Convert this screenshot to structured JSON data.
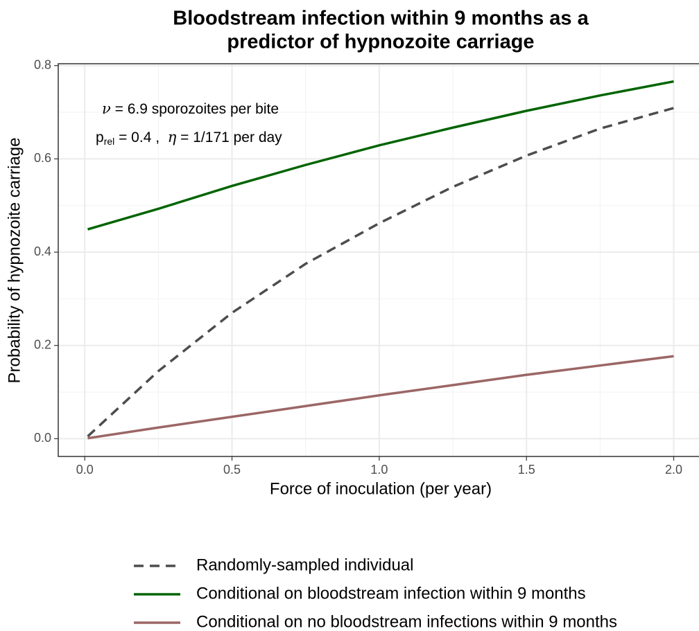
{
  "chart_data": {
    "type": "line",
    "title": [
      "Bloodstream infection within 9 months as a",
      "predictor of hypnozoite carriage"
    ],
    "annotations": [
      [
        "ν",
        " = 6.9 sporozoites per bite"
      ],
      [
        "p",
        "rel",
        " = 0.4 ,  ",
        "η",
        " = 1/171 per day"
      ]
    ],
    "xlabel": "Force of inoculation (per year)",
    "ylabel": "Probability of hypnozoite carriage",
    "x": [
      0.01,
      0.25,
      0.5,
      0.75,
      1.0,
      1.25,
      1.5,
      1.75,
      2.0
    ],
    "series": [
      {
        "name": "Randomly-sampled individual",
        "color": "#4d4d4d",
        "linestyle": "dashed",
        "values": [
          0.005,
          0.145,
          0.27,
          0.375,
          0.462,
          0.54,
          0.607,
          0.665,
          0.709
        ]
      },
      {
        "name": "Conditional on bloodstream infection within 9 months",
        "color": "#006400",
        "linestyle": "solid",
        "values": [
          0.449,
          0.493,
          0.542,
          0.587,
          0.629,
          0.667,
          0.703,
          0.736,
          0.766
        ]
      },
      {
        "name": "Conditional on no bloodstream infections within 9 months",
        "color": "#9c6666",
        "linestyle": "solid",
        "values": [
          0.001,
          0.024,
          0.047,
          0.07,
          0.093,
          0.115,
          0.137,
          0.157,
          0.177
        ]
      }
    ],
    "xlim": [
      -0.09,
      2.1
    ],
    "ylim": [
      -0.038,
      0.804
    ],
    "xticks": [
      {
        "value": 0,
        "label": "0.0"
      },
      0.5,
      {
        "value": 1,
        "label": "1.0"
      },
      1.5,
      {
        "value": 2,
        "label": "2.0"
      }
    ],
    "yticks": [
      {
        "value": 0,
        "label": "0.0"
      },
      0.2,
      0.4,
      0.6,
      0.8
    ],
    "xminorticks": [
      0.25,
      0.75,
      1.25,
      1.75
    ],
    "yminorticks": [
      0.1,
      0.3,
      0.5,
      0.7
    ],
    "grid": true,
    "legend": "bottom"
  }
}
